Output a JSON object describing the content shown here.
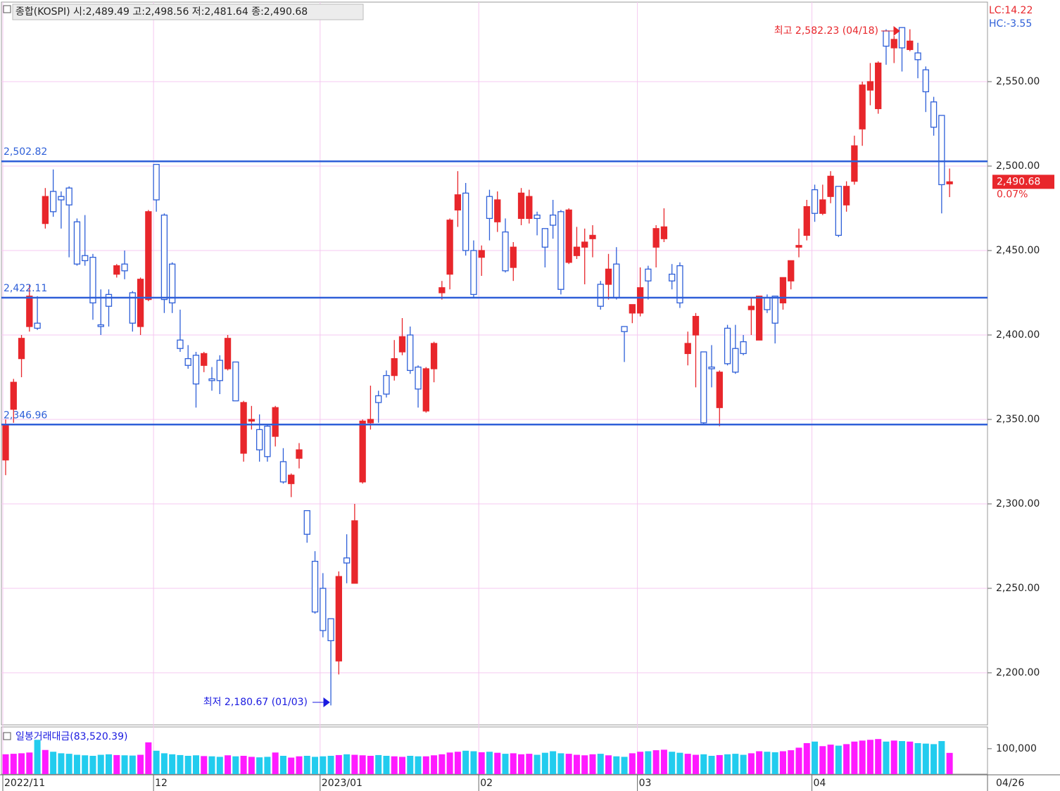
{
  "chart_data": {
    "type": "candlestick",
    "title": "종합(KOSPI) 시:2,489.49 고:2,498.56 저:2,481.64 종:2,490.68",
    "lc_label": "LC:14.22",
    "hc_label": "HC:-3.55",
    "current_price_label": "2,490.68",
    "change_label": "0.07%",
    "high_annotation": "최고 2,582.23 (04/18)",
    "low_annotation": "최저 2,180.67 (01/03)",
    "last_date": "04/26",
    "up_color": "#e8262b",
    "down_color": "#2e5fd8",
    "grid_color": "#f5c8f0",
    "ylim": [
      2169.17,
      2596.25
    ],
    "yticks": [
      {
        "value": 2200,
        "label": "2,200.00"
      },
      {
        "value": 2250,
        "label": "2,250.00"
      },
      {
        "value": 2300,
        "label": "2,300.00"
      },
      {
        "value": 2350,
        "label": "2,350.00"
      },
      {
        "value": 2400,
        "label": "2,400.00"
      },
      {
        "value": 2450,
        "label": "2,450.00"
      },
      {
        "value": 2500,
        "label": "2,500.00"
      },
      {
        "value": 2550,
        "label": "2,550.00"
      }
    ],
    "xticks": [
      {
        "value": 0,
        "label": "2022/11"
      },
      {
        "value": 19,
        "label": "12"
      },
      {
        "value": 40,
        "label": "2023/01"
      },
      {
        "value": 60,
        "label": "02"
      },
      {
        "value": 80,
        "label": "03"
      },
      {
        "value": 102,
        "label": "04"
      }
    ],
    "hlines": [
      {
        "value": 2502.82,
        "label": "2,502.82",
        "color": "#2e5fd8"
      },
      {
        "value": 2422.11,
        "label": "2,422.11",
        "color": "#2e5fd8"
      },
      {
        "value": 2346.96,
        "label": "2,346.96",
        "color": "#2e5fd8"
      }
    ],
    "open": [
      2326,
      2356,
      2386,
      2405,
      2407,
      2466,
      2485,
      2482,
      2487,
      2467,
      2447,
      2446,
      2406,
      2424,
      2436,
      2442,
      2425,
      2405,
      2421,
      2501,
      2471,
      2442,
      2397,
      2386,
      2388,
      2382,
      2374,
      2385,
      2380,
      2384,
      2330,
      2349,
      2344,
      2346,
      2340,
      2325,
      2312,
      2327,
      2296,
      2266,
      2250,
      2232,
      2207,
      2268,
      2253,
      2313,
      2348,
      2364,
      2376,
      2376,
      2390,
      2400,
      2381,
      2355,
      2380,
      2425,
      2436,
      2474,
      2484,
      2450,
      2446,
      2482,
      2467,
      2461,
      2440,
      2469,
      2469,
      2471,
      2463,
      2471,
      2473,
      2443,
      2447,
      2452,
      2457,
      2430,
      2430,
      2442,
      2405,
      2413,
      2413,
      2439,
      2452,
      2457,
      2436,
      2441,
      2389,
      2400,
      2390,
      2381,
      2357,
      2404,
      2392,
      2396,
      2415,
      2397,
      2422,
      2423,
      2419,
      2432,
      2452,
      2459,
      2486,
      2472,
      2482,
      2488,
      2477,
      2491,
      2522,
      2545,
      2534,
      2580,
      2570,
      2582,
      2569,
      2567,
      2557,
      2538,
      2530,
      2489.49
    ],
    "high": [
      2350,
      2374,
      2400,
      2430,
      2423,
      2487,
      2498,
      2485,
      2488,
      2469,
      2471,
      2448,
      2427,
      2427,
      2442,
      2450,
      2426,
      2434,
      2474,
      2501,
      2472,
      2443,
      2415,
      2394,
      2390,
      2390,
      2381,
      2388,
      2400,
      2384,
      2361,
      2358,
      2353,
      2347,
      2358,
      2333,
      2318,
      2336,
      2296,
      2272,
      2259,
      2232,
      2260,
      2282,
      2300,
      2350,
      2370,
      2367,
      2379,
      2397,
      2410,
      2405,
      2382,
      2381,
      2396,
      2432,
      2469,
      2497,
      2490,
      2456,
      2453,
      2486,
      2485,
      2469,
      2455,
      2487,
      2486,
      2473,
      2463,
      2480,
      2474,
      2475,
      2464,
      2463,
      2465,
      2432,
      2448,
      2452,
      2405,
      2418,
      2440,
      2441,
      2465,
      2475,
      2442,
      2443,
      2402,
      2413,
      2390,
      2394,
      2379,
      2406,
      2406,
      2400,
      2422,
      2423,
      2424,
      2423,
      2434,
      2444,
      2463,
      2480,
      2489,
      2489,
      2497,
      2488,
      2491,
      2518,
      2550,
      2561,
      2562,
      2581,
      2577,
      2582.23,
      2581,
      2573,
      2559,
      2541,
      2530,
      2498.56
    ],
    "low": [
      2317,
      2348,
      2375,
      2402,
      2403,
      2463,
      2470,
      2463,
      2446,
      2441,
      2441,
      2409,
      2400,
      2405,
      2434,
      2433,
      2402,
      2400,
      2420,
      2473,
      2413,
      2413,
      2390,
      2380,
      2357,
      2378,
      2367,
      2365,
      2379,
      2361,
      2325,
      2344,
      2325,
      2325,
      2334,
      2312,
      2304,
      2321,
      2277,
      2235,
      2221,
      2180.67,
      2199,
      2253,
      2253,
      2312,
      2344,
      2348,
      2363,
      2373,
      2388,
      2377,
      2357,
      2354,
      2372,
      2421,
      2427,
      2464,
      2447,
      2422,
      2435,
      2456,
      2461,
      2437,
      2432,
      2465,
      2466,
      2459,
      2440,
      2457,
      2424,
      2442,
      2445,
      2430,
      2446,
      2415,
      2421,
      2421,
      2384,
      2407,
      2411,
      2421,
      2440,
      2455,
      2427,
      2416,
      2382,
      2369,
      2347,
      2369,
      2346,
      2382,
      2377,
      2388,
      2400,
      2397,
      2413,
      2395,
      2415,
      2427,
      2446,
      2456,
      2467,
      2471,
      2478,
      2458,
      2473,
      2489,
      2512,
      2536,
      2531,
      2560,
      2561,
      2556,
      2568,
      2552,
      2532,
      2518,
      2472,
      2481.64
    ],
    "close": [
      2347,
      2372,
      2398,
      2423,
      2404,
      2482,
      2473,
      2480,
      2477,
      2442,
      2444,
      2419,
      2405,
      2417,
      2441,
      2438,
      2407,
      2433,
      2473,
      2480,
      2421,
      2419,
      2392,
      2382,
      2371,
      2389,
      2373,
      2373,
      2398,
      2361,
      2360,
      2350,
      2332,
      2328,
      2357,
      2313,
      2317,
      2332,
      2282,
      2236,
      2225,
      2219,
      2257,
      2265,
      2290,
      2349,
      2350,
      2360,
      2365,
      2386,
      2399,
      2379,
      2368,
      2380,
      2395,
      2428,
      2468,
      2483,
      2450,
      2424,
      2450,
      2469,
      2480,
      2438,
      2452,
      2484,
      2482,
      2469,
      2452,
      2465,
      2427,
      2474,
      2452,
      2455,
      2459,
      2417,
      2439,
      2422,
      2402,
      2418,
      2428,
      2432,
      2463,
      2464,
      2432,
      2419,
      2395,
      2411,
      2348,
      2380,
      2378,
      2383,
      2378,
      2389,
      2417,
      2423,
      2415,
      2407,
      2434,
      2444,
      2453,
      2476,
      2472,
      2480,
      2494,
      2459,
      2488,
      2512,
      2548,
      2550,
      2561,
      2571,
      2575,
      2570,
      2574,
      2563,
      2544,
      2523,
      2489,
      2490.68
    ],
    "volume_title": "일봉거래대금(83,520.39)",
    "volume_color_up": "#ff1aff",
    "volume_color_down": "#22ccee",
    "vylim": [
      0,
      180000
    ],
    "vyticks": [
      {
        "value": 100000,
        "label": "100,000"
      }
    ],
    "volume": [
      78000,
      80000,
      82000,
      85000,
      135000,
      95000,
      88000,
      82000,
      80000,
      76000,
      74000,
      72000,
      76000,
      78000,
      75000,
      74000,
      73000,
      76000,
      125000,
      92000,
      82000,
      78000,
      75000,
      72000,
      74000,
      71000,
      70000,
      68000,
      74000,
      70000,
      72000,
      68000,
      66000,
      68000,
      85000,
      72000,
      65000,
      70000,
      72000,
      68000,
      70000,
      72000,
      75000,
      78000,
      76000,
      74000,
      72000,
      75000,
      72000,
      70000,
      68000,
      72000,
      70000,
      70000,
      74000,
      78000,
      85000,
      88000,
      92000,
      90000,
      86000,
      88000,
      84000,
      80000,
      82000,
      78000,
      80000,
      76000,
      84000,
      90000,
      82000,
      80000,
      76000,
      74000,
      78000,
      80000,
      74000,
      70000,
      68000,
      82000,
      88000,
      90000,
      94000,
      96000,
      88000,
      84000,
      80000,
      76000,
      78000,
      72000,
      75000,
      78000,
      80000,
      76000,
      82000,
      90000,
      88000,
      86000,
      90000,
      94000,
      104000,
      122000,
      128000,
      110000,
      116000,
      112000,
      118000,
      128000,
      132000,
      135000,
      138000,
      128000,
      132000,
      130000,
      128000,
      122000,
      120000,
      118000,
      130000,
      83520.39
    ]
  }
}
